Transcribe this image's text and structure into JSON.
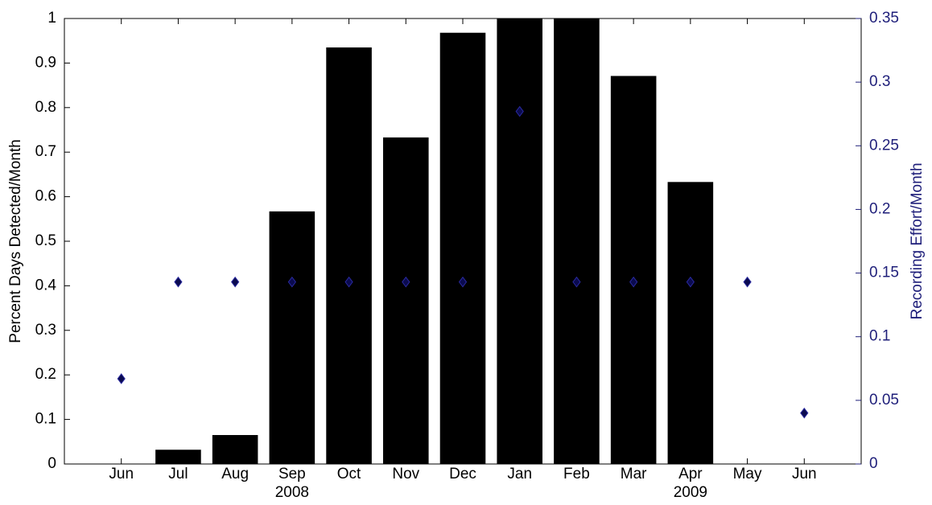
{
  "chart_data": {
    "type": "bar",
    "ylabel": "Percent Days Detected/Month",
    "y2label": "Recording Effort/Month",
    "categories": [
      "Jun",
      "Jul",
      "Aug",
      "Sep",
      "Oct",
      "Nov",
      "Dec",
      "Jan",
      "Feb",
      "Mar",
      "Apr",
      "May",
      "Jun"
    ],
    "sublabels": [
      null,
      null,
      null,
      "2008",
      null,
      null,
      null,
      null,
      null,
      null,
      "2009",
      null,
      null
    ],
    "series": [
      {
        "type": "bar",
        "color": "#000000",
        "values": [
          0,
          0.032,
          0.065,
          0.567,
          0.935,
          0.733,
          0.968,
          1.0,
          1.0,
          0.871,
          0.633,
          0,
          0
        ]
      },
      {
        "type": "scatter",
        "marker": "diamond",
        "color": "#0b0b4f",
        "axis": "y2",
        "values": [
          0.067,
          0.143,
          0.143,
          0.143,
          0.143,
          0.143,
          0.143,
          0.277,
          0.143,
          0.143,
          0.143,
          0.143,
          0.04
        ]
      }
    ],
    "ylim": [
      0,
      1
    ],
    "yticks": [
      0,
      0.1,
      0.2,
      0.3,
      0.4,
      0.5,
      0.6,
      0.7,
      0.8,
      0.9,
      1
    ],
    "y2lim": [
      0,
      0.35
    ],
    "y2ticks": [
      0,
      0.05,
      0.1,
      0.15,
      0.2,
      0.25,
      0.3,
      0.35
    ],
    "y2color": "#1f1f7a"
  }
}
